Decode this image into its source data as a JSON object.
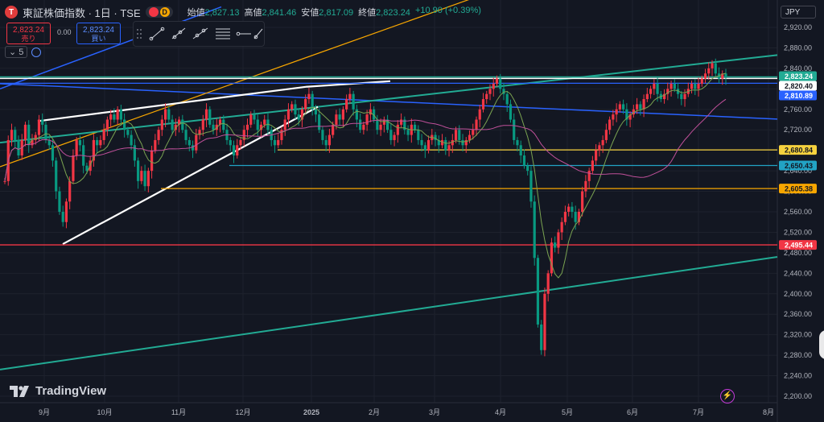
{
  "header": {
    "symbol_logo": "T",
    "symbol_name": "東証株価指数 · 1日 · TSE",
    "badge_d": "D",
    "open_label": "始値",
    "open": "2,827.13",
    "high_label": "高値",
    "high": "2,841.46",
    "low_label": "安値",
    "low": "2,817.09",
    "close_label": "終値",
    "close": "2,823.24",
    "change": "+10.90 (+0.39%)"
  },
  "trade": {
    "sell_price": "2,823.24",
    "sell_label": "売り",
    "spread": "0.00",
    "buy_price": "2,823.24",
    "buy_label": "買い"
  },
  "volume": {
    "label": "5"
  },
  "currency": "JPY",
  "branding": "TradingView",
  "icons": {
    "symbol": "tse-logo-icon",
    "drag": "drag-handle-icon",
    "tools": [
      "trend-line-icon",
      "ray-icon",
      "extended-line-icon",
      "pitchfork-icon",
      "horizontal-ray-icon",
      "info-line-icon"
    ],
    "alert": "lightning-icon"
  },
  "colors": {
    "background": "#131722",
    "grid": "#1e222d",
    "up": "#f23645",
    "down": "#089981",
    "ma_short": "#7aa351",
    "ma_long": "#c0509a",
    "channel": "#22ab94",
    "blue_line": "#2962ff",
    "orange": "#f7a600",
    "white": "#ffffff"
  },
  "chart_data": {
    "type": "candlestick",
    "y_axis": {
      "min": 2200,
      "max": 2920,
      "ticks": [
        "2,920.00",
        "2,880.00",
        "2,840.00",
        "2,800.00",
        "2,760.00",
        "2,720.00",
        "2,680.00",
        "2,640.00",
        "2,600.00",
        "2,560.00",
        "2,520.00",
        "2,480.00",
        "2,440.00",
        "2,400.00",
        "2,360.00",
        "2,320.00",
        "2,280.00",
        "2,240.00",
        "2,200.00"
      ]
    },
    "x_axis": {
      "labels": [
        "9月",
        "10月",
        "11月",
        "12月",
        "2025",
        "2月",
        "3月",
        "4月",
        "5月",
        "6月",
        "7月",
        "8月"
      ]
    },
    "price_levels": [
      {
        "value": 2823.24,
        "label": "2,823.24",
        "color": "#22ab94",
        "text_color": "#ffffff"
      },
      {
        "value": 2820.4,
        "label": "2,820.40",
        "color": "#ffffff",
        "text_color": "#131722"
      },
      {
        "value": 2810.89,
        "label": "2,810.89",
        "color": "#2962ff",
        "text_color": "#ffffff"
      },
      {
        "value": 2680.84,
        "label": "2,680.84",
        "color": "#f7d23e",
        "text_color": "#131722"
      },
      {
        "value": 2650.43,
        "label": "2,650.43",
        "color": "#22a3c4",
        "text_color": "#131722"
      },
      {
        "value": 2605.38,
        "label": "2,605.38",
        "color": "#f7a600",
        "text_color": "#131722"
      },
      {
        "value": 2495.44,
        "label": "2,495.44",
        "color": "#f23645",
        "text_color": "#ffffff"
      }
    ],
    "closes": [
      2620,
      2700,
      2720,
      2700,
      2670,
      2700,
      2730,
      2690,
      2700,
      2710,
      2740,
      2730,
      2700,
      2690,
      2660,
      2600,
      2560,
      2540,
      2580,
      2620,
      2670,
      2700,
      2690,
      2650,
      2640,
      2660,
      2700,
      2690,
      2700,
      2720,
      2740,
      2750,
      2740,
      2760,
      2740,
      2720,
      2710,
      2690,
      2660,
      2620,
      2640,
      2610,
      2640,
      2680,
      2700,
      2720,
      2740,
      2760,
      2740,
      2720,
      2730,
      2740,
      2720,
      2700,
      2690,
      2680,
      2710,
      2720,
      2740,
      2760,
      2730,
      2720,
      2730,
      2740,
      2720,
      2700,
      2690,
      2670,
      2690,
      2700,
      2720,
      2730,
      2750,
      2740,
      2720,
      2730,
      2740,
      2720,
      2700,
      2690,
      2700,
      2720,
      2740,
      2760,
      2770,
      2750,
      2740,
      2760,
      2780,
      2790,
      2760,
      2750,
      2720,
      2700,
      2690,
      2710,
      2730,
      2750,
      2740,
      2760,
      2780,
      2790,
      2760,
      2740,
      2720,
      2730,
      2750,
      2760,
      2740,
      2720,
      2730,
      2740,
      2720,
      2700,
      2710,
      2730,
      2740,
      2720,
      2710,
      2730,
      2720,
      2700,
      2690,
      2680,
      2700,
      2710,
      2700,
      2690,
      2700,
      2680,
      2690,
      2700,
      2720,
      2700,
      2690,
      2700,
      2710,
      2720,
      2740,
      2760,
      2780,
      2790,
      2800,
      2810,
      2820,
      2800,
      2790,
      2770,
      2740,
      2700,
      2690,
      2670,
      2650,
      2640,
      2580,
      2470,
      2340,
      2290,
      2400,
      2440,
      2500,
      2490,
      2520,
      2540,
      2560,
      2570,
      2560,
      2540,
      2560,
      2600,
      2620,
      2640,
      2660,
      2680,
      2690,
      2700,
      2720,
      2740,
      2750,
      2760,
      2770,
      2760,
      2740,
      2750,
      2760,
      2770,
      2760,
      2780,
      2790,
      2800,
      2810,
      2790,
      2780,
      2790,
      2800,
      2810,
      2800,
      2790,
      2780,
      2790,
      2800,
      2810,
      2800,
      2810,
      2820,
      2830,
      2840,
      2850,
      2830,
      2820,
      2830,
      2823
    ],
    "ma_short_note": "short moving average",
    "ma_long_note": "long moving average"
  }
}
